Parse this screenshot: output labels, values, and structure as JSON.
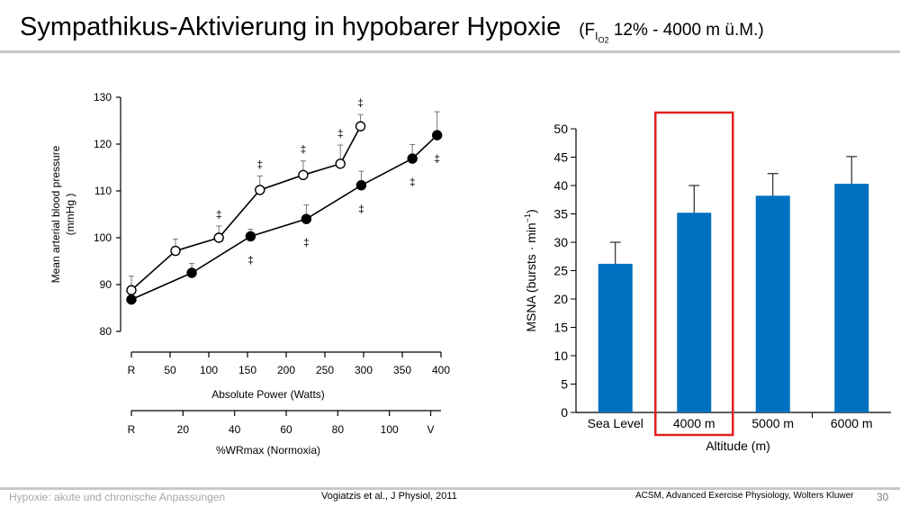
{
  "slide": {
    "title": "Sympathikus-Aktivierung in hypobarer Hypoxie",
    "subtitle_prefix": "(F",
    "subtitle_sub_main": "I",
    "subtitle_sub_sub": "O",
    "subtitle_sub_sub2": "2",
    "subtitle_suffix": " 12%  -  4000 m ü.M.)",
    "footer_course": "Hypoxie: akute und chronische Anpassungen",
    "footer_citation": "Vogiatzis et al., J Physiol, 2011",
    "footer_source": "ACSM, Advanced Exercise Physiology, Wolters Kluwer",
    "page_number": "30",
    "accent_color": "#0070c0",
    "highlight_color": "#e02020"
  },
  "chart_data": [
    {
      "type": "line",
      "ylabel_line1": "Mean arterial blood pressure",
      "ylabel_line2": "(mmHg )",
      "xlabel": "Absolute Power (Watts)",
      "x2label": "%WRmax (Normoxia)",
      "ylim": [
        80,
        130
      ],
      "yticks": [
        80,
        90,
        100,
        110,
        120,
        130
      ],
      "xlim": [
        0,
        400
      ],
      "xticks": [
        {
          "v": 0,
          "label": "R"
        },
        {
          "v": 50,
          "label": "50"
        },
        {
          "v": 100,
          "label": "100"
        },
        {
          "v": 150,
          "label": "150"
        },
        {
          "v": 200,
          "label": "200"
        },
        {
          "v": 250,
          "label": "250"
        },
        {
          "v": 300,
          "label": "300"
        },
        {
          "v": 350,
          "label": "350"
        },
        {
          "v": 400,
          "label": "400"
        }
      ],
      "x2ticks": [
        {
          "v": 0,
          "label": "R"
        },
        {
          "v": 20,
          "label": "20"
        },
        {
          "v": 40,
          "label": "40"
        },
        {
          "v": 60,
          "label": "60"
        },
        {
          "v": 80,
          "label": "80"
        },
        {
          "v": 100,
          "label": "100"
        },
        {
          "v": 116,
          "label": "V"
        }
      ],
      "x2lim": [
        0,
        120
      ],
      "marker_symbol": "‡",
      "series": [
        {
          "marker": "open",
          "x": [
            0,
            57,
            113,
            166,
            222,
            270,
            296
          ],
          "y": [
            88.8,
            97.2,
            100,
            110.2,
            113.4,
            115.8,
            123.8
          ],
          "err": [
            3,
            2.5,
            2.5,
            3,
            3,
            4,
            2.5
          ],
          "sig_above": [
            false,
            false,
            true,
            true,
            true,
            true,
            true
          ]
        },
        {
          "marker": "filled",
          "x": [
            0,
            78,
            154,
            226,
            297,
            363,
            395
          ],
          "y": [
            86.8,
            92.5,
            100.3,
            104,
            111.2,
            116.9,
            121.9
          ],
          "err": [
            0,
            2,
            1.5,
            3,
            3,
            3,
            5
          ],
          "sig_below": [
            false,
            false,
            true,
            true,
            true,
            true,
            true
          ]
        }
      ]
    },
    {
      "type": "bar",
      "ylabel": "MSNA (bursts · min",
      "ylabel_sup": "−1",
      "ylabel_close": ")",
      "xlabel": "Altitude (m)",
      "categories": [
        "Sea Level",
        "4000 m",
        "5000 m",
        "6000 m"
      ],
      "values": [
        26.2,
        35.2,
        38.2,
        40.3
      ],
      "errors": [
        3.8,
        4.8,
        3.9,
        4.8
      ],
      "ylim": [
        0,
        50
      ],
      "yticks": [
        0,
        5,
        10,
        15,
        20,
        25,
        30,
        35,
        40,
        45,
        50
      ],
      "highlight_category": "4000 m"
    }
  ]
}
